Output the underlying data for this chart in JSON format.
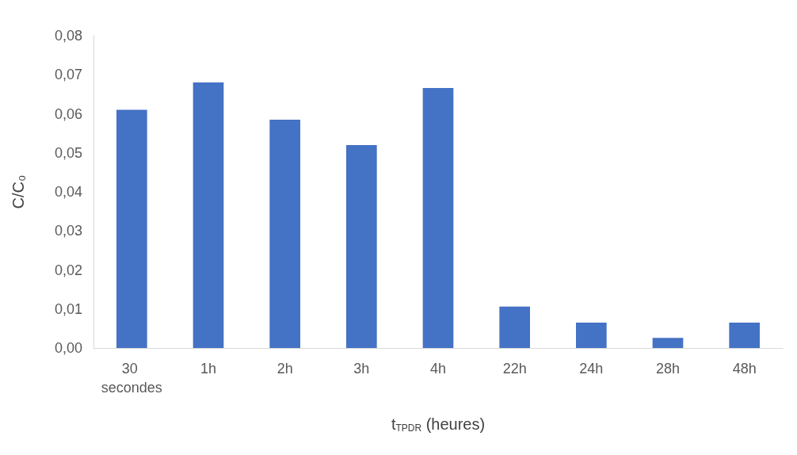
{
  "chart_data": {
    "type": "bar",
    "xlabel": "t$_{TPDR}$ (heures)",
    "ylabel": "C/C₀",
    "categories": [
      "30 secondes",
      "1h",
      "2h",
      "3h",
      "4h",
      "22h",
      "24h",
      "28h",
      "48h"
    ],
    "values": [
      0.061,
      0.068,
      0.0585,
      0.052,
      0.0666,
      0.0106,
      0.0065,
      0.0026,
      0.0065
    ],
    "color": "#4472c4",
    "ylim": [
      0,
      0.08
    ],
    "yticks": [
      {
        "value": 0,
        "label": "0,00"
      },
      {
        "value": 0.01,
        "label": "0,01"
      },
      {
        "value": 0.02,
        "label": "0,02"
      },
      {
        "value": 0.03,
        "label": "0,03"
      },
      {
        "value": 0.04,
        "label": "0,04"
      },
      {
        "value": 0.05,
        "label": "0,05"
      },
      {
        "value": 0.06,
        "label": "0,06"
      },
      {
        "value": 0.07,
        "label": "0,07"
      },
      {
        "value": 0.08,
        "label": "0,08"
      }
    ],
    "grid": false
  }
}
